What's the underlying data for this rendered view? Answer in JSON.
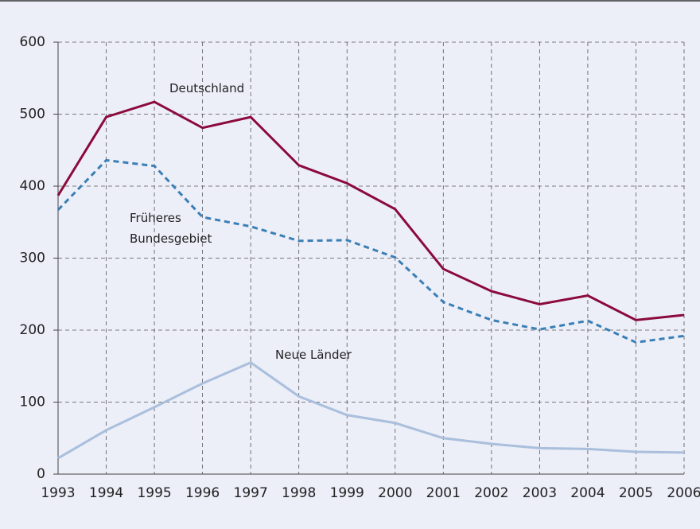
{
  "chart_data": {
    "type": "line",
    "x": [
      1993,
      1994,
      1995,
      1996,
      1997,
      1998,
      1999,
      2000,
      2001,
      2002,
      2003,
      2004,
      2005,
      2006
    ],
    "series": [
      {
        "name": "Deutschland",
        "color": "#8b0a3c",
        "dash": false,
        "values": [
          387,
          496,
          517,
          481,
          496,
          429,
          404,
          368,
          285,
          254,
          236,
          248,
          214,
          221
        ]
      },
      {
        "name": "Früheres Bundesgebiet",
        "color": "#3a7fb5",
        "dash": true,
        "values": [
          367,
          436,
          428,
          357,
          344,
          324,
          325,
          301,
          239,
          214,
          201,
          213,
          183,
          192
        ]
      },
      {
        "name": "Neue Länder",
        "color": "#a9bfdc",
        "dash": false,
        "values": [
          22,
          61,
          93,
          126,
          155,
          108,
          82,
          71,
          50,
          42,
          36,
          35,
          31,
          30
        ]
      }
    ],
    "xlim": [
      1993,
      2006
    ],
    "xticks": [
      1993,
      1994,
      1995,
      1996,
      1997,
      1998,
      1999,
      2000,
      2001,
      2002,
      2003,
      2004,
      2005,
      2006
    ],
    "ylim": [
      0,
      600
    ],
    "yticks": [
      0,
      100,
      200,
      300,
      400,
      500,
      600
    ],
    "grid": true
  }
}
